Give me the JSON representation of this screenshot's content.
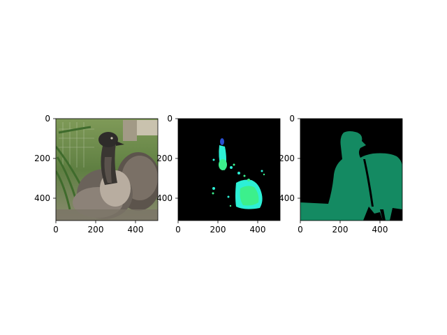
{
  "figure": {
    "panels": [
      {
        "name": "photo",
        "content": "emu-photo",
        "xticks": [
          "0",
          "200",
          "400"
        ],
        "yticks": [
          "0",
          "200",
          "400"
        ]
      },
      {
        "name": "attention-map",
        "content": "attention-map",
        "xticks": [
          "0",
          "200",
          "400"
        ],
        "yticks": [
          "0",
          "200",
          "400"
        ]
      },
      {
        "name": "segmentation-mask",
        "content": "segmentation-mask",
        "xticks": [
          "0",
          "200",
          "400"
        ],
        "yticks": [
          "0",
          "200",
          "400"
        ]
      }
    ],
    "colors": {
      "background": "#000000",
      "mask": "#148a62",
      "heat_cyan": "#2df0d6",
      "heat_green": "#3cf08c",
      "heat_blue": "#2a4fd0",
      "foliage": "#6d8f4a",
      "emu_dark": "#2e2c2a",
      "emu_mid": "#6a625a",
      "emu_light": "#b8ada0"
    }
  }
}
